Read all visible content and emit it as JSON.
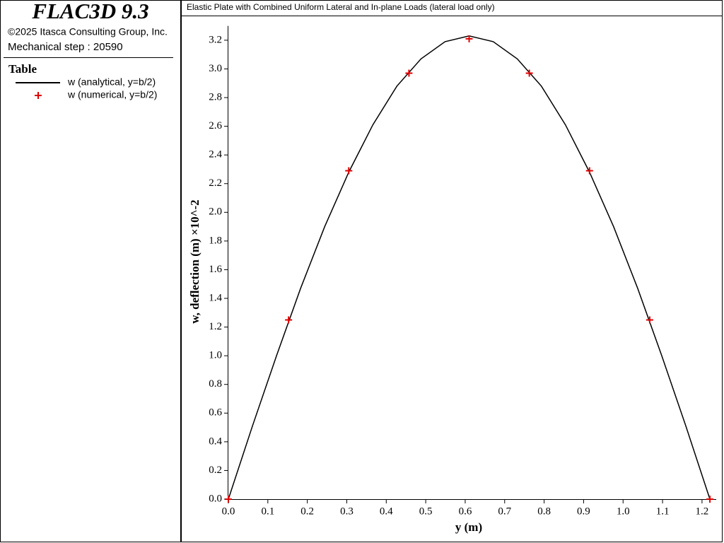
{
  "header": {
    "title": "FLAC3D 9.3",
    "copyright": "©2025 Itasca Consulting Group, Inc.",
    "step": "Mechanical step : 20590",
    "legend_title": "Table"
  },
  "chart_data": {
    "type": "line",
    "title": "Elastic Plate with Combined Uniform Lateral and In-plane Loads (lateral load only)",
    "x_label": "y (m)",
    "y_label": "w, deflection (m) ×10^-2",
    "xlim": [
      0,
      1.236
    ],
    "ylim": [
      0,
      3.3
    ],
    "xticks": [
      {
        "value": 0,
        "label": "0.0"
      },
      0.1,
      0.2,
      0.3,
      0.4,
      0.5,
      0.6,
      0.7,
      0.8,
      0.9,
      {
        "value": 1,
        "label": "1.0"
      },
      1.1,
      1.2
    ],
    "yticks": [
      {
        "value": 0,
        "label": "0.0"
      },
      0.2,
      0.4,
      0.6,
      0.8,
      {
        "value": 1,
        "label": "1.0"
      },
      1.2,
      1.4,
      1.6,
      1.8,
      {
        "value": 2,
        "label": "2.0"
      },
      2.2,
      2.4,
      2.6,
      2.8,
      {
        "value": 3,
        "label": "3.0"
      },
      3.2
    ],
    "series": [
      {
        "name": "w (analytical, y=b/2)",
        "color": "#000000",
        "style": "line",
        "x": [
          0,
          0.061,
          0.122,
          0.183,
          0.244,
          0.305,
          0.366,
          0.427,
          0.488,
          0.549,
          0.61,
          0.671,
          0.732,
          0.793,
          0.854,
          0.915,
          0.976,
          1.037,
          1.098,
          1.159,
          1.22
        ],
        "values": [
          0,
          0.51,
          1.0,
          1.47,
          1.9,
          2.28,
          2.61,
          2.88,
          3.07,
          3.19,
          3.23,
          3.19,
          3.07,
          2.88,
          2.61,
          2.28,
          1.9,
          1.47,
          1.0,
          0.51,
          0
        ]
      },
      {
        "name": "w (numerical, y=b/2)",
        "color": "#e00000",
        "style": "marker",
        "x": [
          0,
          0.1525,
          0.305,
          0.4575,
          0.61,
          0.7625,
          0.915,
          1.0675,
          1.22
        ],
        "values": [
          0,
          1.25,
          2.29,
          2.97,
          3.21,
          2.97,
          2.29,
          1.25,
          0
        ]
      }
    ]
  }
}
